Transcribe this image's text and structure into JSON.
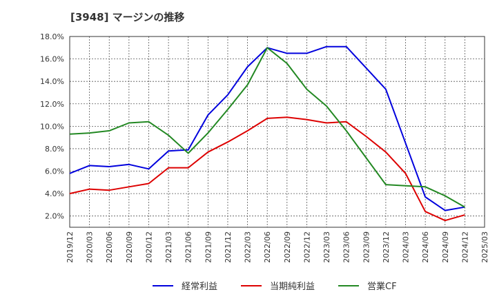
{
  "title": "[3948]  マージンの推移",
  "chart_data": {
    "type": "line",
    "title": "[3948]  マージンの推移",
    "x": [
      "2019/12",
      "2020/03",
      "2020/06",
      "2020/09",
      "2020/12",
      "2021/03",
      "2021/06",
      "2021/09",
      "2021/12",
      "2022/03",
      "2022/06",
      "2022/09",
      "2022/12",
      "2023/03",
      "2023/06",
      "2023/09",
      "2023/12",
      "2024/03",
      "2024/06",
      "2024/09",
      "2024/12",
      "2025/03"
    ],
    "y_ticks": [
      "2.0%",
      "4.0%",
      "6.0%",
      "8.0%",
      "10.0%",
      "12.0%",
      "14.0%",
      "16.0%",
      "18.0%"
    ],
    "ylim": [
      1.0,
      18.0
    ],
    "grid": true,
    "legend_position": "bottom",
    "series": [
      {
        "name": "経常利益",
        "color": "#0000dd",
        "values": [
          5.8,
          6.5,
          6.4,
          6.6,
          6.2,
          7.8,
          7.9,
          11.0,
          12.8,
          15.3,
          17.0,
          16.5,
          16.5,
          17.1,
          17.1,
          15.2,
          13.3,
          8.5,
          3.7,
          2.5,
          2.8,
          null
        ]
      },
      {
        "name": "当期純利益",
        "color": "#dd0000",
        "values": [
          4.0,
          4.4,
          4.3,
          4.6,
          4.9,
          6.3,
          6.3,
          7.7,
          8.6,
          9.6,
          10.7,
          10.8,
          10.6,
          10.3,
          10.4,
          9.1,
          7.7,
          5.8,
          2.4,
          1.6,
          2.1,
          null
        ]
      },
      {
        "name": "営業CF",
        "color": "#228822",
        "values": [
          9.3,
          9.4,
          9.6,
          10.3,
          10.4,
          9.2,
          7.6,
          9.4,
          11.5,
          13.7,
          17.0,
          15.6,
          13.3,
          11.8,
          9.6,
          7.2,
          4.8,
          4.7,
          4.6,
          3.8,
          2.8,
          null
        ]
      }
    ]
  }
}
